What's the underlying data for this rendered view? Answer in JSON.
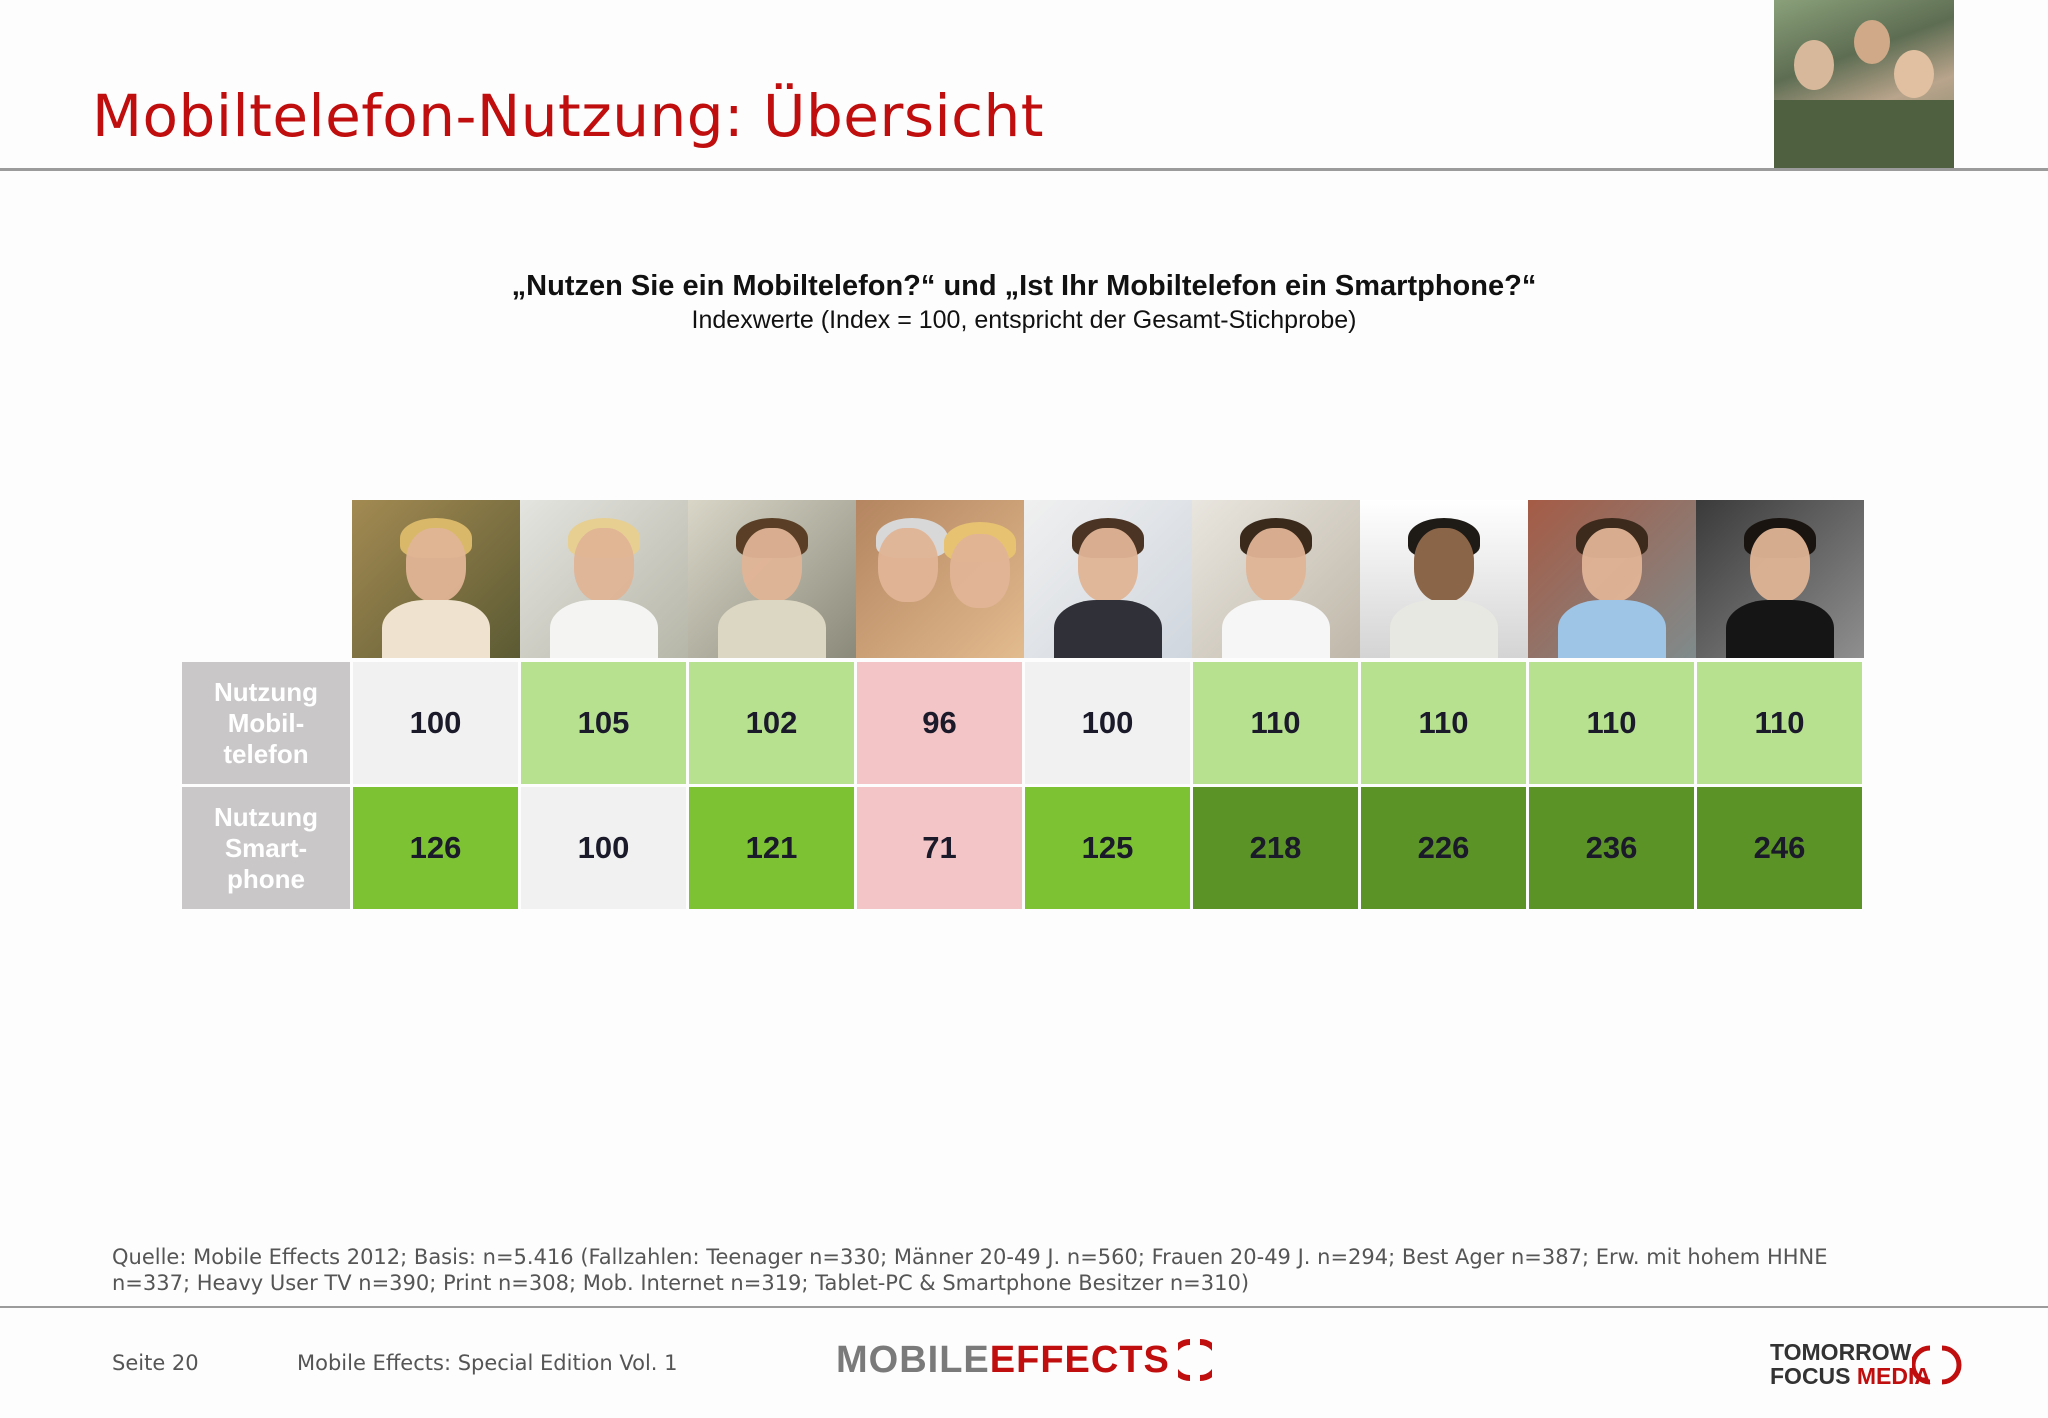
{
  "header": {
    "title": "Mobiltelefon-Nutzung: Übersicht"
  },
  "question": {
    "main": "„Nutzen Sie ein Mobiltelefon?“ und „Ist Ihr Mobiltelefon ein Smartphone?“",
    "sub": "Indexwerte (Index = 100, entspricht der Gesamt-Stichprobe)"
  },
  "table": {
    "rows": [
      {
        "label": "Nutzung\nMobil-\ntelefon",
        "values": [
          "100",
          "105",
          "102",
          "96",
          "100",
          "110",
          "110",
          "110",
          "110"
        ],
        "colors": [
          "#f1f1f1",
          "#b7e08f",
          "#b7e08f",
          "#f3c5c6",
          "#f1f1f1",
          "#b7e08f",
          "#b7e08f",
          "#b7e08f",
          "#b7e08f"
        ]
      },
      {
        "label": "Nutzung\nSmart-\nphone",
        "values": [
          "126",
          "100",
          "121",
          "71",
          "125",
          "218",
          "226",
          "236",
          "246"
        ],
        "colors": [
          "#7cc233",
          "#f1f1f1",
          "#7cc233",
          "#f3c5c6",
          "#7cc233",
          "#5c9327",
          "#5c9327",
          "#5c9327",
          "#5c9327"
        ]
      }
    ]
  },
  "source": "Quelle: Mobile Effects 2012; Basis: n=5.416 (Fallzahlen: Teenager n=330; Männer 20-49 J. n=560; Frauen 20-49 J. n=294; Best Ager n=387; Erw. mit hohem HHNE n=337; Heavy User TV n=390; Print n=308; Mob. Internet n=319; Tablet-PC & Smartphone Besitzer n=310)",
  "footer": {
    "page": "Seite 20",
    "edition": "Mobile Effects: Special Edition Vol. 1",
    "logo_mobile": "MOBILE",
    "logo_effects": "EFFECTS",
    "logo_tomorrow": "TOMORROW",
    "logo_focus": "FOCUS",
    "logo_media": "MEDIA"
  }
}
